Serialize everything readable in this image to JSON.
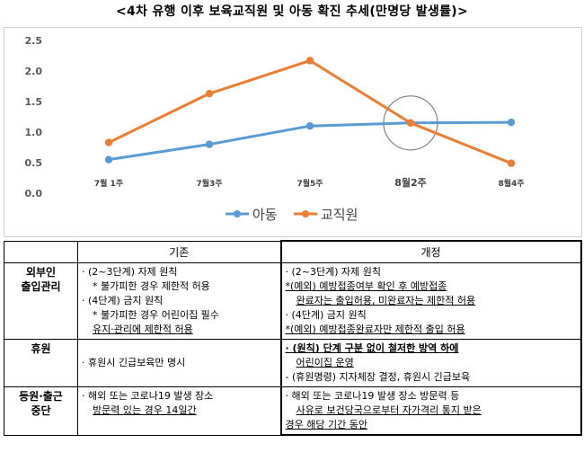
{
  "title": "<4차 유행 이후 보육교직원 및 아동 확진 추세(만명당 발생률)>",
  "chart_data": {
    "type": "line",
    "categories": [
      "7월 1주",
      "7월3주",
      "7월5주",
      "8월2주",
      "8월4주"
    ],
    "series": [
      {
        "name": "아동",
        "values": [
          0.55,
          0.8,
          1.1,
          1.15,
          1.16
        ],
        "color": "#5b9bd5"
      },
      {
        "name": "교직원",
        "values": [
          0.83,
          1.63,
          2.17,
          1.15,
          0.49
        ],
        "color": "#ed7d31"
      }
    ],
    "yticks": [
      "0.0",
      "0.5",
      "1.0",
      "1.5",
      "2.0",
      "2.5"
    ],
    "ylim": [
      0,
      2.5
    ],
    "highlight_category": "8월2주",
    "legend_position": "bottom"
  },
  "table": {
    "headers": {
      "old": "기존",
      "new": "개정"
    },
    "rows": [
      {
        "category": [
          "외부인",
          "출입관리"
        ],
        "old": [
          "· (2~3단계) 자제 원칙",
          "* 불가피한 경우 제한적 허용",
          "· (4단계) 금지 원칙",
          "* 불가피한 경우 어린이집 필수",
          "유지·관리에 제한적 허용"
        ],
        "new": [
          "· (2~3단계) 자제 원칙",
          "*(예외) 예방접종여부 확인 후 예방접종",
          "완료자는 출입허용, 미완료자는 제한적 허용",
          "· (4단계) 금지 원칙",
          "*(예외) 예방접종완료자만 제한적 출입 허용"
        ]
      },
      {
        "category": [
          "휴원"
        ],
        "old": [
          "· 휴원시 긴급보육만 명시"
        ],
        "new": [
          "· (원칙) 단계 구분 없이 철저한 방역 하에",
          "어린이집 운영",
          "- (휴원명령) 지자체장 결정, 휴원시 긴급보육"
        ]
      },
      {
        "category": [
          "등원·출근",
          "중단"
        ],
        "old": [
          "· 해외 또는 코로나19 발생 장소",
          "방문력 있는 경우 14일간"
        ],
        "new": [
          "· 해외 또는 코로나19 발생 장소 방문력 등",
          "사유로 보건당국으로부터 자가격리 통지 받은",
          "경우 해당 기간 동안"
        ]
      }
    ]
  }
}
